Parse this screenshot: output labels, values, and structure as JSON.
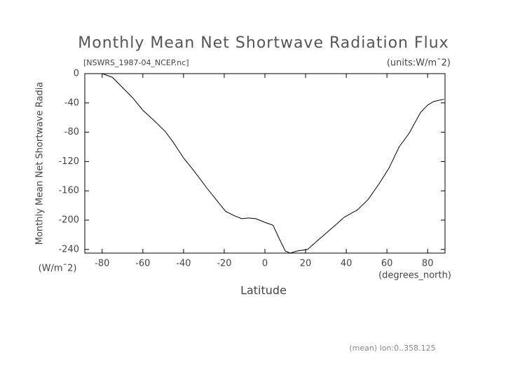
{
  "chart_data": {
    "type": "line",
    "title": "Monthly Mean Net Shortwave Radiation Flux",
    "subtitle": "[NSWRS_1987-04_NCEP.nc]",
    "units_label": "(units:W/m¯2)",
    "y_label": "Monthly Mean Net Shortwave Radia",
    "y_unit_label": "(W/m¯2)",
    "x_label": "Latitude",
    "x_unit_label": "(degrees_north)",
    "footnote": "(mean) lon:0..358.125",
    "x": [
      -88.5,
      -80,
      -75,
      -70,
      -65,
      -60,
      -54.5,
      -49,
      -45,
      -40,
      -34.5,
      -28.6,
      -23.4,
      -19.3,
      -15,
      -11.4,
      -8,
      -4.5,
      0,
      4,
      7,
      10,
      12.4,
      16,
      21,
      25,
      30,
      35,
      39,
      45.5,
      50.7,
      56,
      61,
      66,
      71,
      76.5,
      80,
      83,
      88
    ],
    "series": [
      {
        "color": "#000000",
        "values": [
          0,
          0,
          -5,
          -19,
          -33,
          -50,
          -64,
          -79,
          -94,
          -115,
          -134,
          -156,
          -174,
          -188,
          -194,
          -198,
          -197,
          -198,
          -203,
          -207,
          -225,
          -242,
          -245,
          -242,
          -240,
          -230,
          -218,
          -206,
          -196,
          -186,
          -172,
          -151,
          -129,
          -100,
          -81,
          -53,
          -43,
          -38,
          -35
        ]
      }
    ],
    "xlim": [
      -88.542,
      88.542
    ],
    "xticks": [
      -80,
      -60,
      -40,
      -20,
      0,
      20,
      40,
      60,
      80
    ],
    "ylim": [
      -245,
      0
    ],
    "yticks": [
      0,
      -40,
      -80,
      -120,
      -160,
      -200,
      -240
    ]
  }
}
